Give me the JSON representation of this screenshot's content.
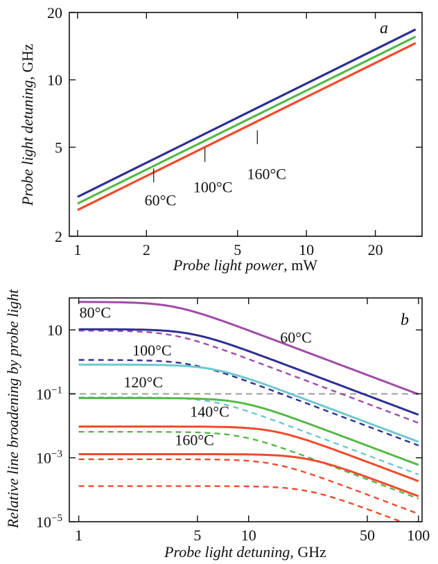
{
  "chart_data": [
    {
      "panel": "a",
      "type": "line",
      "xlabel": "Probe light power",
      "xunit": ", mW",
      "ylabel": "Probe light detuning",
      "yunit": ", GHz",
      "xscale": "log",
      "yscale": "log",
      "xlim": [
        0.92,
        32
      ],
      "ylim": [
        2,
        20
      ],
      "xticks": [
        {
          "v": 1,
          "label": "1"
        },
        {
          "v": 2,
          "label": "2"
        },
        {
          "v": 5,
          "label": "5"
        },
        {
          "v": 10,
          "label": "10"
        },
        {
          "v": 20,
          "label": "20"
        }
      ],
      "yticks": [
        {
          "v": 2,
          "label": "2"
        },
        {
          "v": 5,
          "label": "5"
        },
        {
          "v": 10,
          "label": "10"
        },
        {
          "v": 20,
          "label": "20"
        }
      ],
      "series": [
        {
          "name": "60°C",
          "color": "#2e2f92",
          "x": [
            1,
            30
          ],
          "y": [
            3.0,
            16.8
          ]
        },
        {
          "name": "100°C",
          "color": "#55b948",
          "x": [
            1,
            30
          ],
          "y": [
            2.8,
            15.6
          ]
        },
        {
          "name": "160°C",
          "color": "#ef4a2b",
          "x": [
            1,
            30
          ],
          "y": [
            2.62,
            14.6
          ]
        }
      ],
      "annotations": [
        {
          "text": "60°C",
          "x": 2.3,
          "y": 2.75,
          "ax": 2.15,
          "ay": 3.85
        },
        {
          "text": "100°C",
          "x": 3.9,
          "y": 3.15,
          "ax": 3.6,
          "ay": 4.75
        },
        {
          "text": "160°C",
          "x": 6.7,
          "y": 3.6,
          "ax": 6.1,
          "ay": 5.7
        }
      ]
    },
    {
      "panel": "b",
      "type": "line",
      "xlabel": "Probe light detuning",
      "xunit": ", GHz",
      "ylabel": "Relative line broadening by probe light",
      "xscale": "log",
      "yscale": "log",
      "xlim": [
        0.88,
        105
      ],
      "ylim": [
        1e-05,
        100
      ],
      "xticks": [
        {
          "v": 1,
          "label": "1"
        },
        {
          "v": 5,
          "label": "5"
        },
        {
          "v": 10,
          "label": "10"
        },
        {
          "v": 50,
          "label": "50"
        },
        {
          "v": 100,
          "label": "100"
        }
      ],
      "yticks": [
        {
          "v": 1e-05,
          "m": "10",
          "e": "−5"
        },
        {
          "v": 0.001,
          "m": "10",
          "e": "−3"
        },
        {
          "v": 0.1,
          "m": "10",
          "e": "−1"
        },
        {
          "v": 10,
          "m": "10",
          "e": ""
        }
      ],
      "series": [
        {
          "name": "60°C",
          "color": "#a04aa8",
          "style": "solid",
          "a": 75,
          "k": 3.6
        },
        {
          "name": "60°C",
          "color": "#a04aa8",
          "style": "dashed",
          "a": 9.5,
          "k": 3.6
        },
        {
          "name": "80°C",
          "color": "#2e2f92",
          "style": "solid",
          "a": 10.5,
          "k": 4.6
        },
        {
          "name": "80°C",
          "color": "#2e2f92",
          "style": "dashed",
          "a": 1.15,
          "k": 4.6
        },
        {
          "name": "100°C",
          "color": "#6ec8cc",
          "style": "solid",
          "a": 0.82,
          "k": 6.2
        },
        {
          "name": "100°C",
          "color": "#6ec8cc",
          "style": "dashed",
          "a": 0.078,
          "k": 6.2
        },
        {
          "name": "120°C",
          "color": "#55b948",
          "style": "solid",
          "a": 0.074,
          "k": 9.0
        },
        {
          "name": "120°C",
          "color": "#55b948",
          "style": "dashed",
          "a": 0.0065,
          "k": 9.0
        },
        {
          "name": "140°C",
          "color": "#ef4a2b",
          "style": "solid",
          "a": 0.0095,
          "k": 14.0
        },
        {
          "name": "140°C",
          "color": "#ef4a2b",
          "style": "dashed",
          "a": 0.0009,
          "k": 14.0
        },
        {
          "name": "160°C",
          "color": "#ef4a2b",
          "style": "solid",
          "a": 0.0013,
          "k": 22.0
        },
        {
          "name": "160°C",
          "color": "#ef4a2b",
          "style": "dashed",
          "a": 0.00013,
          "k": 22.0
        }
      ],
      "reference_line": {
        "y": 0.1,
        "color": "#aaaaaa",
        "style": "dashed"
      },
      "annotations": [
        {
          "text": "80°C",
          "x": 1.25,
          "y": 24
        },
        {
          "text": "60°C",
          "x": 19,
          "y": 4
        },
        {
          "text": "100°C",
          "x": 2.7,
          "y": 1.6
        },
        {
          "text": "120°C",
          "x": 2.4,
          "y": 0.16
        },
        {
          "text": "140°C",
          "x": 5.9,
          "y": 0.019
        },
        {
          "text": "160°C",
          "x": 4.8,
          "y": 0.0025
        }
      ]
    }
  ],
  "colors": {
    "blue": "#2e2f92",
    "green": "#55b948",
    "red": "#ef4a2b",
    "purple": "#a04aa8",
    "cyan": "#6ec8cc",
    "grey": "#aaaaaa"
  }
}
